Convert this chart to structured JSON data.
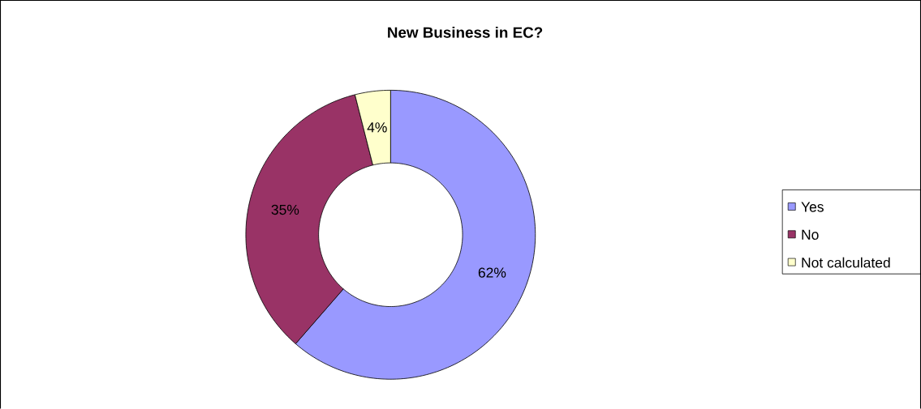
{
  "chart_data": {
    "type": "donut",
    "title": "New Business in EC?",
    "categories": [
      "Yes",
      "No",
      "Not calculated"
    ],
    "values": [
      62,
      35,
      4
    ],
    "value_labels": [
      "62%",
      "35%",
      "4%"
    ],
    "colors": [
      "#9999ff",
      "#993366",
      "#ffffcc"
    ],
    "legend": "right"
  }
}
